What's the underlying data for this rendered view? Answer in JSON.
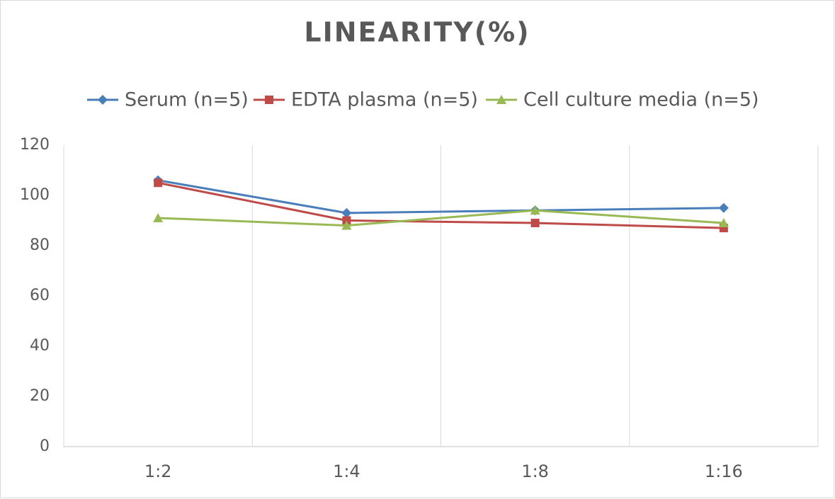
{
  "chart_data": {
    "type": "line",
    "title": "LINEARITY(%)",
    "categories": [
      "1:2",
      "1:4",
      "1:8",
      "1:16"
    ],
    "series": [
      {
        "name": "Serum (n=5)",
        "color": "#4a7ebb",
        "marker": "diamond",
        "values": [
          106,
          93,
          94,
          95
        ]
      },
      {
        "name": "EDTA plasma (n=5)",
        "color": "#be4b48",
        "marker": "square",
        "values": [
          105,
          90,
          89,
          87
        ]
      },
      {
        "name": "Cell culture media (n=5)",
        "color": "#98b954",
        "marker": "triangle",
        "values": [
          91,
          88,
          94,
          89
        ]
      }
    ],
    "ylim": [
      0,
      120
    ],
    "yticks": [
      0,
      20,
      40,
      60,
      80,
      100,
      120
    ],
    "grid": true,
    "legend": "top"
  }
}
